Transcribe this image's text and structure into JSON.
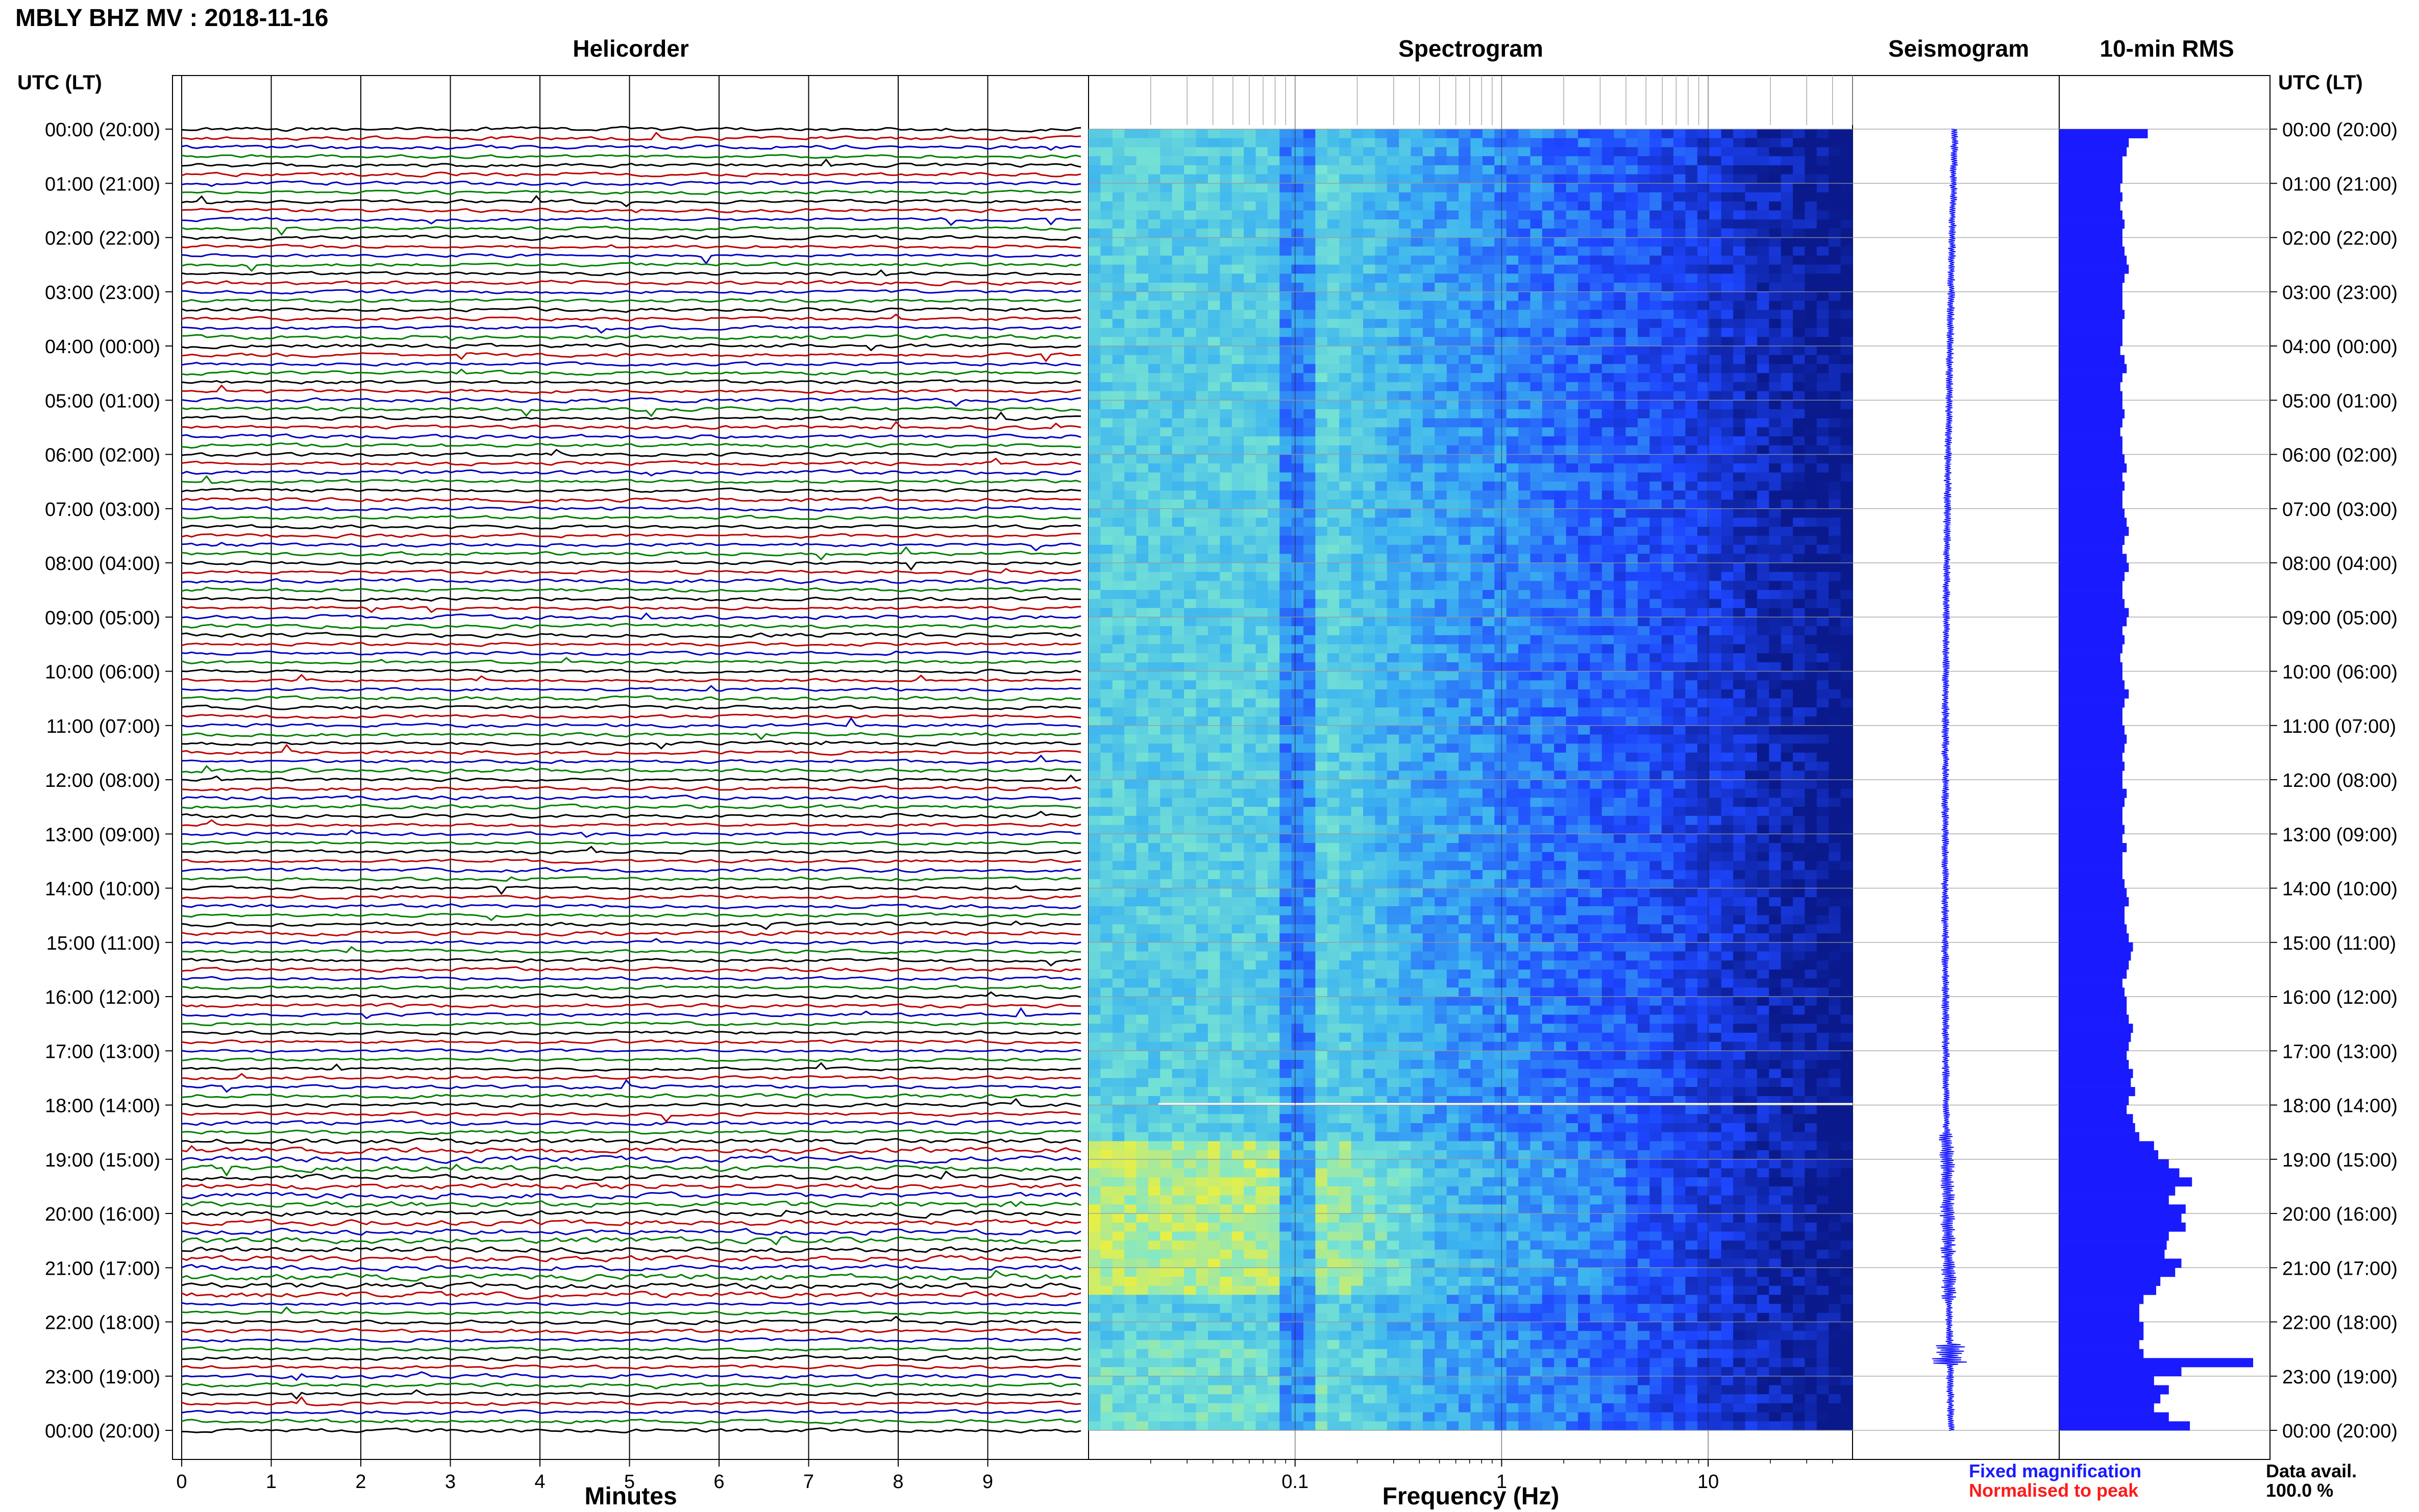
{
  "header": {
    "title": "MBLY BHZ MV : 2018-11-16"
  },
  "panels": {
    "helicorder": "Helicorder",
    "spectrogram": "Spectrogram",
    "seismogram": "Seismogram",
    "rms": "10-min RMS"
  },
  "axis_labels": {
    "utc_left": "UTC (LT)",
    "utc_right": "UTC (LT)",
    "minutes": "Minutes",
    "frequency": "Frequency (Hz)"
  },
  "legend": {
    "fixed": "Fixed magnification",
    "fixed_color": "#1a1aff",
    "normalised": "Normalised to peak",
    "normalised_color": "#ff1a1a"
  },
  "data_avail": {
    "label": "Data avail.",
    "value": "100.0 %"
  },
  "trace_colors": [
    "#000000",
    "#c00000",
    "#0000c0",
    "#008000"
  ],
  "chart_data": [
    {
      "type": "line",
      "panel": "Helicorder",
      "xlabel": "Minutes",
      "x_ticks": [
        "0",
        "1",
        "2",
        "3",
        "4",
        "5",
        "6",
        "7",
        "8",
        "9"
      ],
      "xlim": [
        0,
        10
      ],
      "y_ticks": [
        "00:00 (20:00)",
        "01:00 (21:00)",
        "02:00 (22:00)",
        "03:00 (23:00)",
        "04:00 (00:00)",
        "05:00 (01:00)",
        "06:00 (02:00)",
        "07:00 (03:00)",
        "08:00 (04:00)",
        "09:00 (05:00)",
        "10:00 (06:00)",
        "11:00 (07:00)",
        "12:00 (08:00)",
        "13:00 (09:00)",
        "14:00 (10:00)",
        "15:00 (11:00)",
        "16:00 (12:00)",
        "17:00 (13:00)",
        "18:00 (14:00)",
        "19:00 (15:00)",
        "20:00 (16:00)",
        "21:00 (17:00)",
        "22:00 (18:00)",
        "23:00 (19:00)",
        "00:00 (20:00)"
      ],
      "rows": 144,
      "rows_per_hour": 6
    },
    {
      "type": "heatmap",
      "panel": "Spectrogram",
      "xlabel": "Frequency (Hz)",
      "x_scale": "log",
      "xlim": [
        0.01,
        50
      ],
      "x_ticks": [
        "0.1",
        "1",
        "10"
      ],
      "colormap": [
        "#0a1a8c",
        "#1e46ff",
        "#3cb4f0",
        "#7ae6d2",
        "#f0f03c"
      ]
    },
    {
      "type": "line",
      "panel": "Seismogram"
    },
    {
      "type": "bar",
      "panel": "10-min RMS",
      "orientation": "horizontal",
      "bar_color": "#1a1aff",
      "values": [
        0.42,
        0.33,
        0.32,
        0.3,
        0.3,
        0.3,
        0.29,
        0.3,
        0.29,
        0.3,
        0.31,
        0.3,
        0.3,
        0.31,
        0.32,
        0.33,
        0.31,
        0.3,
        0.3,
        0.3,
        0.31,
        0.3,
        0.3,
        0.3,
        0.29,
        0.31,
        0.32,
        0.3,
        0.29,
        0.3,
        0.3,
        0.31,
        0.3,
        0.29,
        0.3,
        0.3,
        0.31,
        0.32,
        0.3,
        0.31,
        0.3,
        0.3,
        0.31,
        0.32,
        0.33,
        0.31,
        0.3,
        0.32,
        0.33,
        0.31,
        0.3,
        0.3,
        0.31,
        0.33,
        0.32,
        0.3,
        0.31,
        0.3,
        0.29,
        0.3,
        0.3,
        0.31,
        0.33,
        0.31,
        0.3,
        0.3,
        0.31,
        0.32,
        0.31,
        0.3,
        0.31,
        0.3,
        0.3,
        0.32,
        0.31,
        0.3,
        0.3,
        0.31,
        0.3,
        0.32,
        0.3,
        0.3,
        0.3,
        0.31,
        0.32,
        0.33,
        0.31,
        0.31,
        0.32,
        0.33,
        0.35,
        0.34,
        0.33,
        0.32,
        0.3,
        0.31,
        0.32,
        0.32,
        0.33,
        0.35,
        0.34,
        0.33,
        0.32,
        0.33,
        0.35,
        0.34,
        0.36,
        0.33,
        0.32,
        0.35,
        0.36,
        0.38,
        0.45,
        0.47,
        0.52,
        0.57,
        0.63,
        0.55,
        0.52,
        0.6,
        0.58,
        0.6,
        0.52,
        0.51,
        0.5,
        0.58,
        0.55,
        0.48,
        0.46,
        0.4,
        0.38,
        0.38,
        0.4,
        0.4,
        0.38,
        0.4,
        0.92,
        0.58,
        0.45,
        0.52,
        0.48,
        0.45,
        0.52,
        0.62
      ]
    }
  ]
}
